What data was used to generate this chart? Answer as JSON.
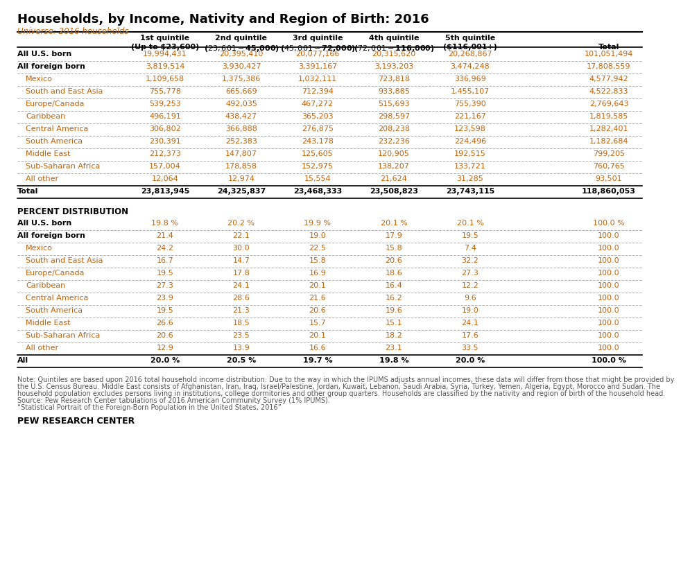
{
  "title": "Households, by Income, Nativity and Region of Birth: 2016",
  "universe": "Universe: 2016 households",
  "col_headers_line1": [
    "1st quintile",
    "2nd quintile",
    "3rd quintile",
    "4th quintile",
    "5th quintile",
    ""
  ],
  "col_headers_line2": [
    "(Up to $23,600)",
    "($23,601-$45,000)",
    "($45,001-$72,000)",
    "($72,001-$116,000)",
    "($116,001+)",
    "Total"
  ],
  "count_rows": [
    [
      "All U.S. born",
      "19,994,431",
      "20,395,410",
      "20,077,166",
      "20,315,620",
      "20,268,867",
      "101,051,494"
    ],
    [
      "All foreign born",
      "3,819,514",
      "3,930,427",
      "3,391,167",
      "3,193,203",
      "3,474,248",
      "17,808,559"
    ],
    [
      "Mexico",
      "1,109,658",
      "1,375,386",
      "1,032,111",
      "723,818",
      "336,969",
      "4,577,942"
    ],
    [
      "South and East Asia",
      "755,778",
      "665,669",
      "712,394",
      "933,885",
      "1,455,107",
      "4,522,833"
    ],
    [
      "Europe/Canada",
      "539,253",
      "492,035",
      "467,272",
      "515,693",
      "755,390",
      "2,769,643"
    ],
    [
      "Caribbean",
      "496,191",
      "438,427",
      "365,203",
      "298,597",
      "221,167",
      "1,819,585"
    ],
    [
      "Central America",
      "306,802",
      "366,888",
      "276,875",
      "208,238",
      "123,598",
      "1,282,401"
    ],
    [
      "South America",
      "230,391",
      "252,383",
      "243,178",
      "232,236",
      "224,496",
      "1,182,684"
    ],
    [
      "Middle East",
      "212,373",
      "147,807",
      "125,605",
      "120,905",
      "192,515",
      "799,205"
    ],
    [
      "Sub-Saharan Africa",
      "157,004",
      "178,858",
      "152,975",
      "138,207",
      "133,721",
      "760,765"
    ],
    [
      "All other",
      "12,064",
      "12,974",
      "15,554",
      "21,624",
      "31,285",
      "93,501"
    ]
  ],
  "count_row_indent": [
    false,
    false,
    true,
    true,
    true,
    true,
    true,
    true,
    true,
    true,
    true
  ],
  "count_row_bold": [
    true,
    true,
    false,
    false,
    false,
    false,
    false,
    false,
    false,
    false,
    false
  ],
  "total_row": [
    "Total",
    "23,813,945",
    "24,325,837",
    "23,468,333",
    "23,508,823",
    "23,743,115",
    "118,860,053"
  ],
  "percent_section_label": "PERCENT DISTRIBUTION",
  "percent_rows": [
    [
      "All U.S. born",
      "19.8 %",
      "20.2 %",
      "19.9 %",
      "20.1 %",
      "20.1 %",
      "100.0 %"
    ],
    [
      "All foreign born",
      "21.4",
      "22.1",
      "19.0",
      "17.9",
      "19.5",
      "100.0"
    ],
    [
      "Mexico",
      "24.2",
      "30.0",
      "22.5",
      "15.8",
      "7.4",
      "100.0"
    ],
    [
      "South and East Asia",
      "16.7",
      "14.7",
      "15.8",
      "20.6",
      "32.2",
      "100.0"
    ],
    [
      "Europe/Canada",
      "19.5",
      "17.8",
      "16.9",
      "18.6",
      "27.3",
      "100.0"
    ],
    [
      "Caribbean",
      "27.3",
      "24.1",
      "20.1",
      "16.4",
      "12.2",
      "100.0"
    ],
    [
      "Central America",
      "23.9",
      "28.6",
      "21.6",
      "16.2",
      "9.6",
      "100.0"
    ],
    [
      "South America",
      "19.5",
      "21.3",
      "20.6",
      "19.6",
      "19.0",
      "100.0"
    ],
    [
      "Middle East",
      "26.6",
      "18.5",
      "15.7",
      "15.1",
      "24.1",
      "100.0"
    ],
    [
      "Sub-Saharan Africa",
      "20.6",
      "23.5",
      "20.1",
      "18.2",
      "17.6",
      "100.0"
    ],
    [
      "All other",
      "12.9",
      "13.9",
      "16.6",
      "23.1",
      "33.5",
      "100.0"
    ]
  ],
  "percent_row_indent": [
    false,
    false,
    true,
    true,
    true,
    true,
    true,
    true,
    true,
    true,
    true
  ],
  "percent_row_bold": [
    true,
    true,
    false,
    false,
    false,
    false,
    false,
    false,
    false,
    false,
    false
  ],
  "all_row": [
    "All",
    "20.0 %",
    "20.5 %",
    "19.7 %",
    "19.8 %",
    "20.0 %",
    "100.0 %"
  ],
  "note_lines": [
    "Note: Quintiles are based upon 2016 total household income distribution. Due to the way in which the IPUMS adjusts annual incomes, these data will differ from those that might be provided by",
    "the U.S. Census Bureau. Middle East consists of Afghanistan, Iran, Iraq, Israel/Palestine, Jordan, Kuwait, Lebanon, Saudi Arabia, Syria, Turkey, Yemen, Algeria, Egypt, Morocco and Sudan. The",
    "household population excludes persons living in institutions, college dormitories and other group quarters. Households are classified by the nativity and region of birth of the household head.",
    "Source: Pew Research Center tabulations of 2016 American Community Survey (1% IPUMS).",
    "“Statistical Portrait of the Foreign-Born Population in the United States, 2016”"
  ],
  "footer": "PEW RESEARCH CENTER",
  "title_color": "#000000",
  "universe_color": "#c0620a",
  "header_color": "#000000",
  "orange_color": "#c0620a",
  "black_color": "#000000",
  "note_color": "#555555",
  "dash_line_color": "#b0b0b0",
  "solid_line_color": "#000000",
  "bg_color": "#ffffff"
}
